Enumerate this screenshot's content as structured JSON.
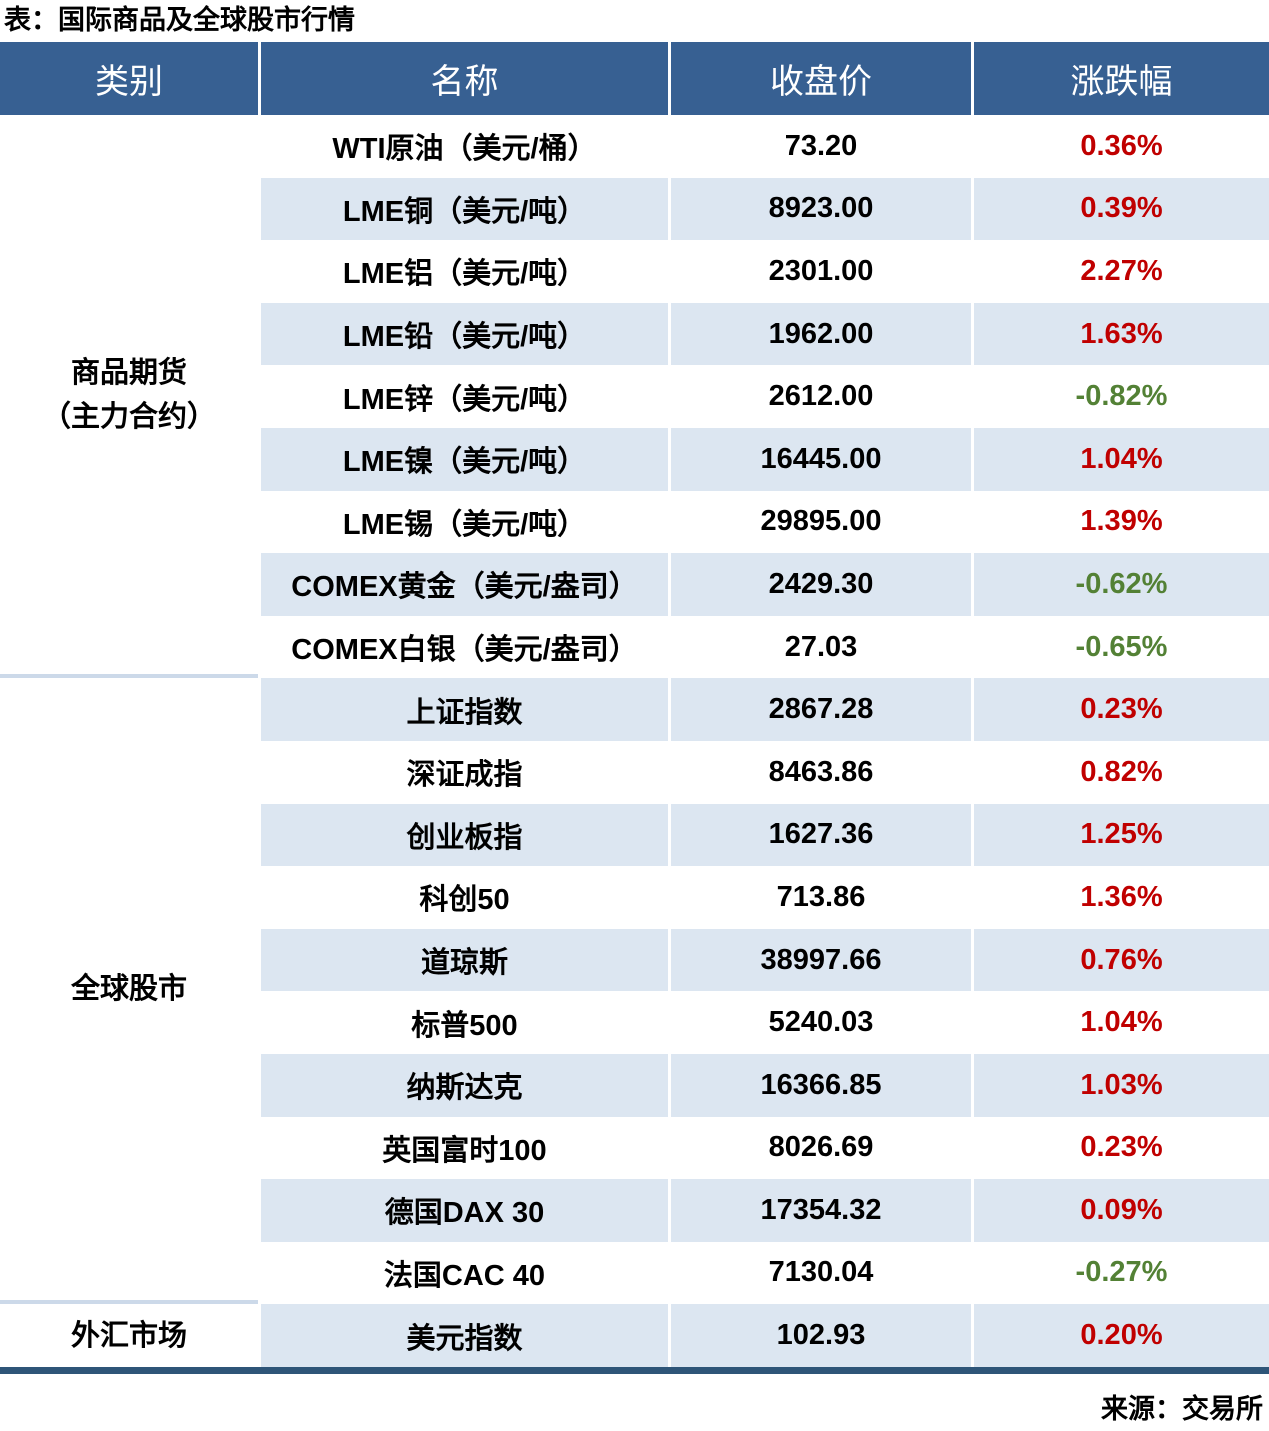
{
  "title": "表：国际商品及全球股市行情",
  "source_note": "来源：交易所",
  "colors": {
    "header_bg": "#376092",
    "header_text": "#ffffff",
    "alt_row_bg": "#dce6f1",
    "up": "#c00000",
    "down": "#538135",
    "section_divider": "#ccd9e9",
    "bottom_bar": "#2e5578"
  },
  "chart_data": {
    "type": "table",
    "title": "国际商品及全球股市行情",
    "source": "交易所",
    "columns": [
      "类别",
      "名称",
      "收盘价",
      "涨跌幅"
    ],
    "sections": [
      {
        "label": "商品期货\n（主力合约）",
        "rows": 9
      },
      {
        "label": "全球股市",
        "rows": 10
      },
      {
        "label": "外汇市场",
        "rows": 1
      }
    ],
    "rows": [
      {
        "category": "商品期货（主力合约）",
        "name": "WTI原油（美元/桶）",
        "close": "73.20",
        "change": "0.36%",
        "direction": "up"
      },
      {
        "category": "商品期货（主力合约）",
        "name": "LME铜（美元/吨）",
        "close": "8923.00",
        "change": "0.39%",
        "direction": "up"
      },
      {
        "category": "商品期货（主力合约）",
        "name": "LME铝（美元/吨）",
        "close": "2301.00",
        "change": "2.27%",
        "direction": "up"
      },
      {
        "category": "商品期货（主力合约）",
        "name": "LME铅（美元/吨）",
        "close": "1962.00",
        "change": "1.63%",
        "direction": "up"
      },
      {
        "category": "商品期货（主力合约）",
        "name": "LME锌（美元/吨）",
        "close": "2612.00",
        "change": "-0.82%",
        "direction": "down"
      },
      {
        "category": "商品期货（主力合约）",
        "name": "LME镍（美元/吨）",
        "close": "16445.00",
        "change": "1.04%",
        "direction": "up"
      },
      {
        "category": "商品期货（主力合约）",
        "name": "LME锡（美元/吨）",
        "close": "29895.00",
        "change": "1.39%",
        "direction": "up"
      },
      {
        "category": "商品期货（主力合约）",
        "name": "COMEX黄金（美元/盎司）",
        "close": "2429.30",
        "change": "-0.62%",
        "direction": "down"
      },
      {
        "category": "商品期货（主力合约）",
        "name": "COMEX白银（美元/盎司）",
        "close": "27.03",
        "change": "-0.65%",
        "direction": "down"
      },
      {
        "category": "全球股市",
        "name": "上证指数",
        "close": "2867.28",
        "change": "0.23%",
        "direction": "up"
      },
      {
        "category": "全球股市",
        "name": "深证成指",
        "close": "8463.86",
        "change": "0.82%",
        "direction": "up"
      },
      {
        "category": "全球股市",
        "name": "创业板指",
        "close": "1627.36",
        "change": "1.25%",
        "direction": "up"
      },
      {
        "category": "全球股市",
        "name": "科创50",
        "close": "713.86",
        "change": "1.36%",
        "direction": "up"
      },
      {
        "category": "全球股市",
        "name": "道琼斯",
        "close": "38997.66",
        "change": "0.76%",
        "direction": "up"
      },
      {
        "category": "全球股市",
        "name": "标普500",
        "close": "5240.03",
        "change": "1.04%",
        "direction": "up"
      },
      {
        "category": "全球股市",
        "name": "纳斯达克",
        "close": "16366.85",
        "change": "1.03%",
        "direction": "up"
      },
      {
        "category": "全球股市",
        "name": "英国富时100",
        "close": "8026.69",
        "change": "0.23%",
        "direction": "up"
      },
      {
        "category": "全球股市",
        "name": "德国DAX 30",
        "close": "17354.32",
        "change": "0.09%",
        "direction": "up"
      },
      {
        "category": "全球股市",
        "name": "法国CAC 40",
        "close": "7130.04",
        "change": "-0.27%",
        "direction": "down"
      },
      {
        "category": "外汇市场",
        "name": "美元指数",
        "close": "102.93",
        "change": "0.20%",
        "direction": "up"
      }
    ]
  }
}
